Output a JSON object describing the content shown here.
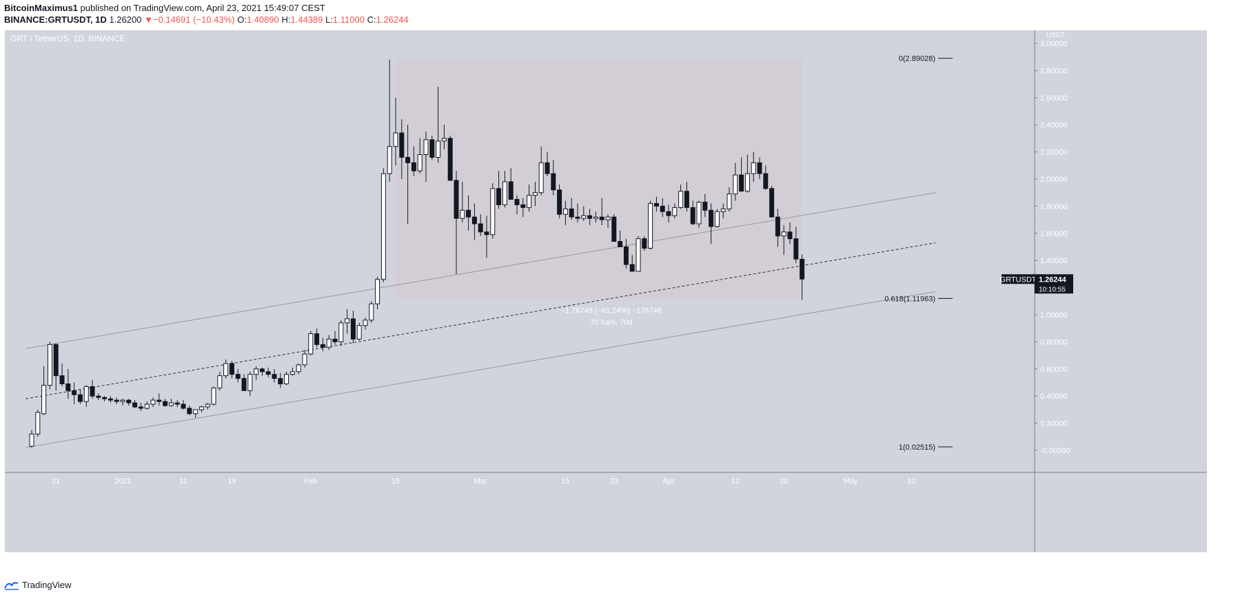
{
  "header": {
    "author": "BitcoinMaximus1",
    "published": "published on TradingView.com, April 23, 2021 15:49:07 CEST",
    "symbol": "BINANCE:GRTUSDT, 1D",
    "last": "1.26200",
    "change": "−0.14691 (−10.43%)",
    "o_label": "O:",
    "o": "1.40890",
    "h_label": "H:",
    "h": "1.44389",
    "l_label": "L:",
    "l": "1.11000",
    "c_label": "C:",
    "c": "1.26244"
  },
  "footer": {
    "brand": "TradingView"
  },
  "chart_data": {
    "type": "candlestick",
    "title": "GRT / TetherUS, 1D, BINANCE",
    "currency": "USDT",
    "ylim": [
      -0.1,
      3.08
    ],
    "y_ticks": [
      "3.00000",
      "2.80000",
      "2.60000",
      "2.40000",
      "2.20000",
      "2.00000",
      "1.80000",
      "1.60000",
      "1.40000",
      "1.20000",
      "1.00000",
      "0.80000",
      "0.60000",
      "0.40000",
      "0.20000",
      "-0.00000"
    ],
    "y_tick_values": [
      3.0,
      2.8,
      2.6,
      2.4,
      2.2,
      2.0,
      1.8,
      1.6,
      1.4,
      1.2,
      1.0,
      0.8,
      0.6,
      0.4,
      0.2,
      0.0
    ],
    "x_ticks": [
      {
        "label": "21",
        "day": 4
      },
      {
        "label": "2021",
        "day": 15
      },
      {
        "label": "11",
        "day": 25
      },
      {
        "label": "19",
        "day": 33
      },
      {
        "label": "Feb",
        "day": 46
      },
      {
        "label": "15",
        "day": 60
      },
      {
        "label": "Mar",
        "day": 74
      },
      {
        "label": "15",
        "day": 88
      },
      {
        "label": "23",
        "day": 96
      },
      {
        "label": "Apr",
        "day": 105
      },
      {
        "label": "12",
        "day": 116
      },
      {
        "label": "20",
        "day": 124
      },
      {
        "label": "May",
        "day": 135
      },
      {
        "label": "10",
        "day": 145
      }
    ],
    "candles_ohlc": [
      [
        0.03,
        0.15,
        0.02,
        0.12
      ],
      [
        0.12,
        0.3,
        0.1,
        0.28
      ],
      [
        0.27,
        0.62,
        0.26,
        0.48
      ],
      [
        0.48,
        0.8,
        0.45,
        0.78
      ],
      [
        0.78,
        0.79,
        0.44,
        0.55
      ],
      [
        0.55,
        0.64,
        0.47,
        0.49
      ],
      [
        0.49,
        0.6,
        0.38,
        0.44
      ],
      [
        0.44,
        0.5,
        0.34,
        0.41
      ],
      [
        0.41,
        0.45,
        0.34,
        0.36
      ],
      [
        0.36,
        0.48,
        0.32,
        0.47
      ],
      [
        0.47,
        0.52,
        0.38,
        0.4
      ],
      [
        0.4,
        0.42,
        0.37,
        0.39
      ],
      [
        0.39,
        0.4,
        0.36,
        0.38
      ],
      [
        0.38,
        0.4,
        0.35,
        0.37
      ],
      [
        0.37,
        0.39,
        0.34,
        0.36
      ],
      [
        0.36,
        0.38,
        0.33,
        0.37
      ],
      [
        0.37,
        0.38,
        0.33,
        0.35
      ],
      [
        0.35,
        0.37,
        0.31,
        0.32
      ],
      [
        0.32,
        0.35,
        0.29,
        0.31
      ],
      [
        0.31,
        0.36,
        0.3,
        0.34
      ],
      [
        0.34,
        0.39,
        0.32,
        0.37
      ],
      [
        0.37,
        0.42,
        0.33,
        0.36
      ],
      [
        0.36,
        0.38,
        0.32,
        0.33
      ],
      [
        0.33,
        0.38,
        0.32,
        0.35
      ],
      [
        0.35,
        0.37,
        0.32,
        0.34
      ],
      [
        0.34,
        0.37,
        0.3,
        0.31
      ],
      [
        0.31,
        0.33,
        0.26,
        0.27
      ],
      [
        0.27,
        0.3,
        0.24,
        0.3
      ],
      [
        0.3,
        0.33,
        0.28,
        0.32
      ],
      [
        0.32,
        0.35,
        0.3,
        0.34
      ],
      [
        0.34,
        0.47,
        0.33,
        0.46
      ],
      [
        0.46,
        0.58,
        0.44,
        0.55
      ],
      [
        0.55,
        0.67,
        0.53,
        0.64
      ],
      [
        0.64,
        0.66,
        0.53,
        0.56
      ],
      [
        0.56,
        0.6,
        0.5,
        0.53
      ],
      [
        0.53,
        0.56,
        0.44,
        0.44
      ],
      [
        0.44,
        0.58,
        0.4,
        0.56
      ],
      [
        0.56,
        0.62,
        0.52,
        0.6
      ],
      [
        0.6,
        0.61,
        0.55,
        0.58
      ],
      [
        0.58,
        0.61,
        0.54,
        0.56
      ],
      [
        0.56,
        0.6,
        0.5,
        0.53
      ],
      [
        0.53,
        0.57,
        0.46,
        0.49
      ],
      [
        0.49,
        0.58,
        0.48,
        0.56
      ],
      [
        0.56,
        0.61,
        0.55,
        0.58
      ],
      [
        0.58,
        0.64,
        0.56,
        0.63
      ],
      [
        0.63,
        0.74,
        0.61,
        0.71
      ],
      [
        0.71,
        0.88,
        0.7,
        0.86
      ],
      [
        0.86,
        0.9,
        0.76,
        0.78
      ],
      [
        0.78,
        0.83,
        0.73,
        0.76
      ],
      [
        0.76,
        0.85,
        0.74,
        0.82
      ],
      [
        0.82,
        0.88,
        0.78,
        0.8
      ],
      [
        0.8,
        0.96,
        0.77,
        0.94
      ],
      [
        0.94,
        1.04,
        0.86,
        0.97
      ],
      [
        0.97,
        1.03,
        0.79,
        0.82
      ],
      [
        0.82,
        0.94,
        0.81,
        0.92
      ],
      [
        0.92,
        0.98,
        0.89,
        0.96
      ],
      [
        0.96,
        1.1,
        0.94,
        1.08
      ],
      [
        1.08,
        1.28,
        1.04,
        1.26
      ],
      [
        1.26,
        2.08,
        1.24,
        2.04
      ],
      [
        2.04,
        2.88,
        1.98,
        2.24
      ],
      [
        2.24,
        2.6,
        2.1,
        2.34
      ],
      [
        2.34,
        2.44,
        2.0,
        2.16
      ],
      [
        2.16,
        2.4,
        1.67,
        2.12
      ],
      [
        2.12,
        2.24,
        2.02,
        2.06
      ],
      [
        2.06,
        2.3,
        2.04,
        2.18
      ],
      [
        2.18,
        2.35,
        1.98,
        2.29
      ],
      [
        2.29,
        2.32,
        2.14,
        2.16
      ],
      [
        2.16,
        2.68,
        2.12,
        2.28
      ],
      [
        2.28,
        2.4,
        2.22,
        2.3
      ],
      [
        2.3,
        2.32,
        1.99,
        1.99
      ],
      [
        1.99,
        2.06,
        1.3,
        1.71
      ],
      [
        1.71,
        1.98,
        1.68,
        1.77
      ],
      [
        1.77,
        1.88,
        1.62,
        1.72
      ],
      [
        1.72,
        1.82,
        1.55,
        1.67
      ],
      [
        1.67,
        1.74,
        1.58,
        1.61
      ],
      [
        1.61,
        1.73,
        1.42,
        1.59
      ],
      [
        1.59,
        1.97,
        1.56,
        1.93
      ],
      [
        1.93,
        2.06,
        1.78,
        1.81
      ],
      [
        1.81,
        2.06,
        1.79,
        1.98
      ],
      [
        1.98,
        2.08,
        1.89,
        1.85
      ],
      [
        1.85,
        1.88,
        1.74,
        1.81
      ],
      [
        1.81,
        1.86,
        1.72,
        1.79
      ],
      [
        1.79,
        1.96,
        1.76,
        1.88
      ],
      [
        1.88,
        1.98,
        1.8,
        1.9
      ],
      [
        1.9,
        2.24,
        1.88,
        2.12
      ],
      [
        2.12,
        2.2,
        2.02,
        2.04
      ],
      [
        2.04,
        2.14,
        1.88,
        1.92
      ],
      [
        1.92,
        1.96,
        1.71,
        1.74
      ],
      [
        1.74,
        1.84,
        1.66,
        1.78
      ],
      [
        1.78,
        1.86,
        1.7,
        1.72
      ],
      [
        1.72,
        1.82,
        1.68,
        1.71
      ],
      [
        1.71,
        1.8,
        1.69,
        1.73
      ],
      [
        1.73,
        1.78,
        1.66,
        1.71
      ],
      [
        1.71,
        1.76,
        1.68,
        1.72
      ],
      [
        1.72,
        1.86,
        1.66,
        1.7
      ],
      [
        1.7,
        1.74,
        1.64,
        1.72
      ],
      [
        1.72,
        1.74,
        1.54,
        1.54
      ],
      [
        1.54,
        1.62,
        1.5,
        1.5
      ],
      [
        1.5,
        1.56,
        1.34,
        1.37
      ],
      [
        1.37,
        1.44,
        1.32,
        1.32
      ],
      [
        1.32,
        1.58,
        1.32,
        1.56
      ],
      [
        1.56,
        1.58,
        1.47,
        1.49
      ],
      [
        1.49,
        1.84,
        1.48,
        1.82
      ],
      [
        1.82,
        1.87,
        1.76,
        1.8
      ],
      [
        1.8,
        1.86,
        1.72,
        1.76
      ],
      [
        1.76,
        1.81,
        1.68,
        1.73
      ],
      [
        1.73,
        1.82,
        1.71,
        1.79
      ],
      [
        1.79,
        1.96,
        1.78,
        1.91
      ],
      [
        1.91,
        1.98,
        1.76,
        1.79
      ],
      [
        1.79,
        1.84,
        1.66,
        1.67
      ],
      [
        1.67,
        1.84,
        1.64,
        1.83
      ],
      [
        1.83,
        1.89,
        1.72,
        1.77
      ],
      [
        1.77,
        1.82,
        1.52,
        1.65
      ],
      [
        1.65,
        1.78,
        1.64,
        1.76
      ],
      [
        1.76,
        1.82,
        1.71,
        1.78
      ],
      [
        1.78,
        1.94,
        1.76,
        1.89
      ],
      [
        1.89,
        2.12,
        1.84,
        2.03
      ],
      [
        2.03,
        2.16,
        1.91,
        1.91
      ],
      [
        1.91,
        2.18,
        1.9,
        2.04
      ],
      [
        2.04,
        2.2,
        1.98,
        2.12
      ],
      [
        2.12,
        2.16,
        2.0,
        2.04
      ],
      [
        2.04,
        2.1,
        1.92,
        1.93
      ],
      [
        1.93,
        1.95,
        1.72,
        1.72
      ],
      [
        1.72,
        1.78,
        1.5,
        1.58
      ],
      [
        1.58,
        1.66,
        1.44,
        1.61
      ],
      [
        1.61,
        1.68,
        1.52,
        1.56
      ],
      [
        1.56,
        1.65,
        1.38,
        1.41
      ],
      [
        1.4089,
        1.44389,
        1.11,
        1.26244
      ]
    ],
    "fib_levels": [
      {
        "label": "0(2.89028)",
        "value": 2.89028
      },
      {
        "label": "0.618(1.11963)",
        "value": 1.11963
      },
      {
        "label": "1(0.02515)",
        "value": 0.02515
      }
    ],
    "range_box": {
      "from_day": 60,
      "to_day": 127,
      "top": 2.89028,
      "bottom": 1.11963
    },
    "measure_labels": [
      "−1.76748 (−61.24%) −176748",
      "70 bars, 70d"
    ],
    "channel": {
      "upper": {
        "x0": -1,
        "y0": 0.75,
        "x1": 149,
        "y1": 1.9
      },
      "middle": {
        "x0": -1,
        "y0": 0.38,
        "x1": 149,
        "y1": 1.53
      },
      "lower": {
        "x0": -1,
        "y0": 0.02,
        "x1": 149,
        "y1": 1.17
      }
    },
    "price_tag": {
      "symbol": "GRTUSDT",
      "price": "1.26244",
      "countdown": "10:10:55",
      "value": 1.26244
    }
  }
}
